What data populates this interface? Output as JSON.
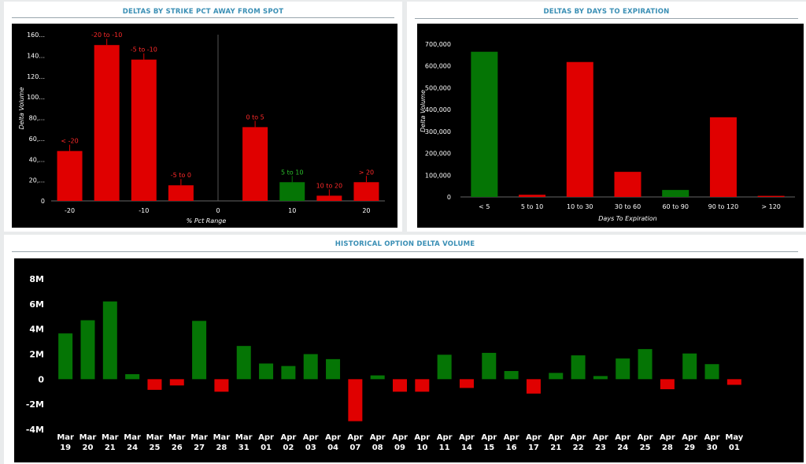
{
  "panels": {
    "strike": {
      "title": "DELTAS BY STRIKE PCT AWAY FROM SPOT"
    },
    "expiry": {
      "title": "DELTAS BY DAYS TO EXPIRATION"
    },
    "history": {
      "title": "HISTORICAL OPTION DELTA VOLUME"
    }
  },
  "colors": {
    "positive": "#057505",
    "negative": "#e00000",
    "background": "#000000",
    "title": "#3a8fb5"
  },
  "chart_data": [
    {
      "id": "strike",
      "type": "bar",
      "title": "DELTAS BY STRIKE PCT AWAY FROM SPOT",
      "xlabel": "% Pct Range",
      "ylabel": "Delta Volume",
      "ylim": [
        0,
        160
      ],
      "yticks": [
        "0",
        "20,...",
        "40,...",
        "60,...",
        "80,...",
        "100...",
        "120...",
        "140...",
        "160..."
      ],
      "xticks": [
        "-20",
        "-10",
        "0",
        "10",
        "20"
      ],
      "xlim": [
        -22.5,
        22.5
      ],
      "categories": [
        "< -20",
        "-20 to -10",
        "-5 to -10",
        "-5 to 0",
        "0 to 5",
        "5 to 10",
        "10 to 20",
        "> 20"
      ],
      "x": [
        -20,
        -15,
        -10,
        -5,
        5,
        10,
        15,
        20
      ],
      "values": [
        48,
        150,
        136,
        15,
        71,
        18,
        5,
        18
      ],
      "colors": [
        "red",
        "red",
        "red",
        "red",
        "red",
        "green",
        "red",
        "red"
      ]
    },
    {
      "id": "expiry",
      "type": "bar",
      "title": "DELTAS BY DAYS TO EXPIRATION",
      "xlabel": "Days To Expiration",
      "ylabel": "Delta Volume",
      "ylim": [
        0,
        700000
      ],
      "yticks": [
        "0",
        "100,000",
        "200,000",
        "300,000",
        "400,000",
        "500,000",
        "600,000",
        "700,000"
      ],
      "categories": [
        "< 5",
        "5 to 10",
        "10 to 30",
        "30 to 60",
        "60 to 90",
        "90 to 120",
        "> 120"
      ],
      "values": [
        665000,
        10000,
        618000,
        115000,
        32000,
        365000,
        5000
      ],
      "colors": [
        "green",
        "red",
        "red",
        "red",
        "green",
        "red",
        "red"
      ]
    },
    {
      "id": "history",
      "type": "bar",
      "title": "HISTORICAL OPTION DELTA VOLUME",
      "ylim": [
        -4000000,
        8000000
      ],
      "yticks": [
        "-4M",
        "-2M",
        "0",
        "2M",
        "4M",
        "6M",
        "8M"
      ],
      "categories": [
        [
          "Mar",
          "19"
        ],
        [
          "Mar",
          "20"
        ],
        [
          "Mar",
          "21"
        ],
        [
          "Mar",
          "24"
        ],
        [
          "Mar",
          "25"
        ],
        [
          "Mar",
          "26"
        ],
        [
          "Mar",
          "27"
        ],
        [
          "Mar",
          "28"
        ],
        [
          "Mar",
          "31"
        ],
        [
          "Apr",
          "01"
        ],
        [
          "Apr",
          "02"
        ],
        [
          "Apr",
          "03"
        ],
        [
          "Apr",
          "04"
        ],
        [
          "Apr",
          "07"
        ],
        [
          "Apr",
          "08"
        ],
        [
          "Apr",
          "09"
        ],
        [
          "Apr",
          "10"
        ],
        [
          "Apr",
          "11"
        ],
        [
          "Apr",
          "14"
        ],
        [
          "Apr",
          "15"
        ],
        [
          "Apr",
          "16"
        ],
        [
          "Apr",
          "17"
        ],
        [
          "Apr",
          "21"
        ],
        [
          "Apr",
          "22"
        ],
        [
          "Apr",
          "23"
        ],
        [
          "Apr",
          "24"
        ],
        [
          "Apr",
          "25"
        ],
        [
          "Apr",
          "28"
        ],
        [
          "Apr",
          "29"
        ],
        [
          "Apr",
          "30"
        ],
        [
          "May",
          "01"
        ]
      ],
      "values": [
        3650000,
        4700000,
        6200000,
        400000,
        -850000,
        -500000,
        4650000,
        -1000000,
        2650000,
        1250000,
        1050000,
        2000000,
        1600000,
        -3350000,
        300000,
        -1000000,
        -1000000,
        1950000,
        -700000,
        2100000,
        650000,
        -1150000,
        500000,
        1900000,
        250000,
        1650000,
        2400000,
        -800000,
        2050000,
        1200000,
        -450000
      ]
    }
  ]
}
